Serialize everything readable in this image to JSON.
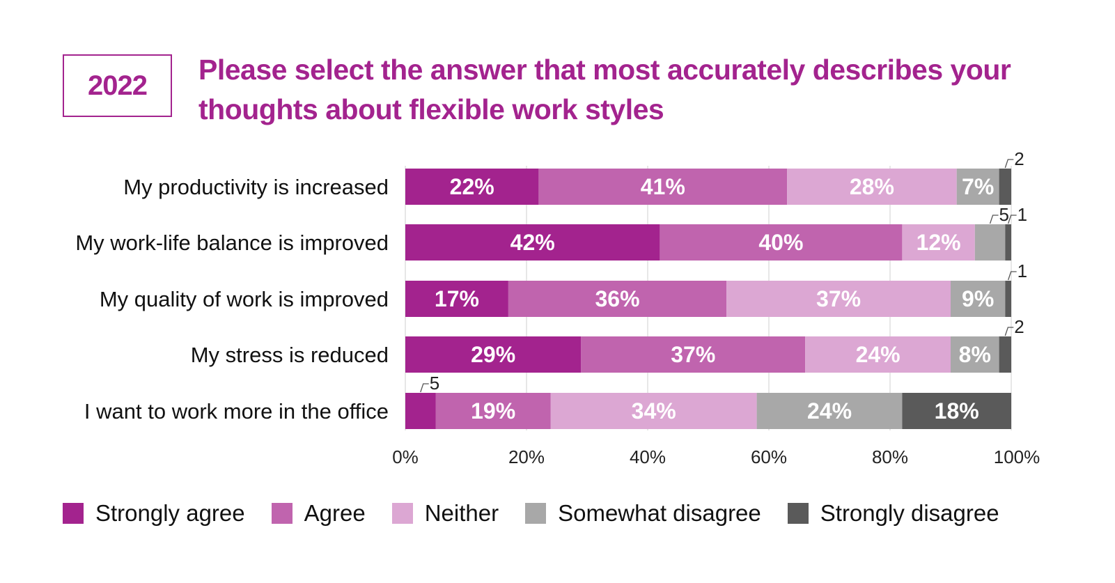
{
  "header": {
    "year": "2022",
    "title": "Please select the answer that most accurately describes your thoughts about flexible work styles"
  },
  "chart_data": {
    "type": "bar",
    "orientation": "horizontal",
    "stacked": true,
    "categories": [
      "My productivity is increased",
      "My work-life balance is improved",
      "My quality of work is improved",
      "My stress is reduced",
      "I want to work more in the office"
    ],
    "series": [
      {
        "name": "Strongly agree",
        "color": "#a3238e",
        "values": [
          22,
          42,
          17,
          29,
          5
        ],
        "labels": [
          "22%",
          "42%",
          "17%",
          "29%",
          "5"
        ]
      },
      {
        "name": "Agree",
        "color": "#c064ae",
        "values": [
          41,
          40,
          36,
          37,
          19
        ],
        "labels": [
          "41%",
          "40%",
          "36%",
          "37%",
          "19%"
        ]
      },
      {
        "name": "Neither",
        "color": "#dca7d3",
        "values": [
          28,
          12,
          37,
          24,
          34
        ],
        "labels": [
          "28%",
          "12%",
          "37%",
          "24%",
          "34%"
        ]
      },
      {
        "name": "Somewhat disagree",
        "color": "#a8a8a8",
        "values": [
          7,
          5,
          9,
          8,
          24
        ],
        "labels": [
          "7%",
          "5",
          "9%",
          "8%",
          "24%"
        ]
      },
      {
        "name": "Strongly disagree",
        "color": "#5a5a5a",
        "values": [
          2,
          1,
          1,
          2,
          18
        ],
        "labels": [
          "2",
          "1",
          "1",
          "2",
          "18%"
        ]
      }
    ],
    "xlim": [
      0,
      100
    ],
    "xticks": [
      "0%",
      "20%",
      "40%",
      "60%",
      "80%",
      "100%"
    ],
    "grid": true,
    "legend_position": "bottom"
  }
}
